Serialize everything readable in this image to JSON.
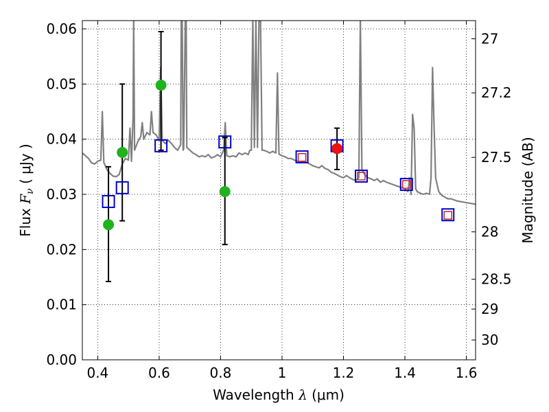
{
  "chart_data": {
    "type": "scatter",
    "xlabel": "Wavelength  λ (μm)",
    "ylabel": "Flux  Fν  ( μJy )",
    "ylabel_parts": {
      "prefix": "Flux  ",
      "symbol": "F",
      "sub": "ν",
      "suffix": "  ( μJy )"
    },
    "xlabel_parts": {
      "prefix": "Wavelength  ",
      "symbol": "λ",
      "suffix": " (μm)"
    },
    "y2label": "Magnitude (AB)",
    "xlim": [
      0.35,
      1.63
    ],
    "ylim": [
      0.0,
      0.0615
    ],
    "grid": true,
    "x_ticks": [
      0.4,
      0.6,
      0.8,
      1.0,
      1.2,
      1.4,
      1.6
    ],
    "x_tick_labels": [
      "0.4",
      "0.6",
      "0.8",
      "1",
      "1.2",
      "1.4",
      "1.6"
    ],
    "y_ticks": [
      0.0,
      0.01,
      0.02,
      0.03,
      0.04,
      0.05,
      0.06
    ],
    "y_tick_labels": [
      "0.00",
      "0.01",
      "0.02",
      "0.03",
      "0.04",
      "0.05",
      "0.06"
    ],
    "y2_ticks": [
      {
        "label": "27",
        "flux": 0.0582
      },
      {
        "label": "27.2",
        "flux": 0.0484
      },
      {
        "label": "27.5",
        "flux": 0.0367
      },
      {
        "label": "28",
        "flux": 0.0232
      },
      {
        "label": "28.5",
        "flux": 0.0146
      },
      {
        "label": "29",
        "flux": 0.0092
      },
      {
        "label": "30",
        "flux": 0.0036
      }
    ],
    "colors": {
      "model": "#808080",
      "observed": "#1fb31f",
      "observed_red": "#ee1111",
      "model_phot_blue": "#0000cc",
      "model_phot_red": "#cc2222",
      "errorbar": "#000000"
    },
    "series": [
      {
        "name": "model spectrum",
        "kind": "line",
        "points": [
          [
            0.35,
            0.0375
          ],
          [
            0.37,
            0.0365
          ],
          [
            0.38,
            0.0357
          ],
          [
            0.39,
            0.0355
          ],
          [
            0.4,
            0.036
          ],
          [
            0.41,
            0.0362
          ],
          [
            0.415,
            0.045
          ],
          [
            0.42,
            0.0358
          ],
          [
            0.43,
            0.0345
          ],
          [
            0.44,
            0.0338
          ],
          [
            0.45,
            0.0333
          ],
          [
            0.46,
            0.0332
          ],
          [
            0.47,
            0.0336
          ],
          [
            0.48,
            0.0355
          ],
          [
            0.49,
            0.0365
          ],
          [
            0.5,
            0.0362
          ],
          [
            0.505,
            0.042
          ],
          [
            0.51,
            0.036
          ],
          [
            0.515,
            0.044
          ],
          [
            0.517,
            0.062
          ],
          [
            0.52,
            0.038
          ],
          [
            0.53,
            0.0395
          ],
          [
            0.54,
            0.0405
          ],
          [
            0.545,
            0.043
          ],
          [
            0.55,
            0.04
          ],
          [
            0.56,
            0.0412
          ],
          [
            0.57,
            0.0408
          ],
          [
            0.575,
            0.045
          ],
          [
            0.58,
            0.0412
          ],
          [
            0.59,
            0.0408
          ],
          [
            0.6,
            0.0398
          ],
          [
            0.605,
            0.053
          ],
          [
            0.61,
            0.0398
          ],
          [
            0.62,
            0.0392
          ],
          [
            0.63,
            0.0398
          ],
          [
            0.64,
            0.0392
          ],
          [
            0.65,
            0.0385
          ],
          [
            0.66,
            0.038
          ],
          [
            0.67,
            0.039
          ],
          [
            0.672,
            0.062
          ],
          [
            0.675,
            0.062
          ],
          [
            0.678,
            0.038
          ],
          [
            0.68,
            0.0383
          ],
          [
            0.685,
            0.062
          ],
          [
            0.688,
            0.062
          ],
          [
            0.69,
            0.0385
          ],
          [
            0.7,
            0.038
          ],
          [
            0.71,
            0.0375
          ],
          [
            0.72,
            0.0372
          ],
          [
            0.73,
            0.0368
          ],
          [
            0.74,
            0.037
          ],
          [
            0.75,
            0.0368
          ],
          [
            0.76,
            0.0372
          ],
          [
            0.77,
            0.0366
          ],
          [
            0.78,
            0.0368
          ],
          [
            0.79,
            0.0372
          ],
          [
            0.8,
            0.0368
          ],
          [
            0.81,
            0.038
          ],
          [
            0.815,
            0.043
          ],
          [
            0.82,
            0.037
          ],
          [
            0.83,
            0.0368
          ],
          [
            0.84,
            0.037
          ],
          [
            0.85,
            0.0368
          ],
          [
            0.86,
            0.0375
          ],
          [
            0.87,
            0.0372
          ],
          [
            0.88,
            0.0375
          ],
          [
            0.89,
            0.0372
          ],
          [
            0.895,
            0.038
          ],
          [
            0.9,
            0.038
          ],
          [
            0.905,
            0.062
          ],
          [
            0.91,
            0.0385
          ],
          [
            0.915,
            0.062
          ],
          [
            0.92,
            0.0385
          ],
          [
            0.925,
            0.062
          ],
          [
            0.93,
            0.062
          ],
          [
            0.935,
            0.038
          ],
          [
            0.94,
            0.038
          ],
          [
            0.95,
            0.0378
          ],
          [
            0.96,
            0.0375
          ],
          [
            0.97,
            0.0378
          ],
          [
            0.98,
            0.0375
          ],
          [
            0.985,
            0.052
          ],
          [
            0.99,
            0.0373
          ],
          [
            1.0,
            0.037
          ],
          [
            1.01,
            0.0368
          ],
          [
            1.02,
            0.0365
          ],
          [
            1.03,
            0.0365
          ],
          [
            1.04,
            0.0362
          ],
          [
            1.05,
            0.036
          ],
          [
            1.06,
            0.0358
          ],
          [
            1.07,
            0.036
          ],
          [
            1.08,
            0.0358
          ],
          [
            1.09,
            0.0355
          ],
          [
            1.1,
            0.0352
          ],
          [
            1.11,
            0.035
          ],
          [
            1.12,
            0.0348
          ],
          [
            1.13,
            0.0352
          ],
          [
            1.14,
            0.0347
          ],
          [
            1.15,
            0.0345
          ],
          [
            1.16,
            0.034
          ],
          [
            1.17,
            0.0338
          ],
          [
            1.18,
            0.0335
          ],
          [
            1.19,
            0.0332
          ],
          [
            1.2,
            0.033
          ],
          [
            1.21,
            0.0334
          ],
          [
            1.22,
            0.033
          ],
          [
            1.23,
            0.0327
          ],
          [
            1.24,
            0.0325
          ],
          [
            1.25,
            0.033
          ],
          [
            1.255,
            0.062
          ],
          [
            1.26,
            0.0345
          ],
          [
            1.27,
            0.0335
          ],
          [
            1.28,
            0.033
          ],
          [
            1.29,
            0.0328
          ],
          [
            1.3,
            0.0325
          ],
          [
            1.31,
            0.0328
          ],
          [
            1.32,
            0.0322
          ],
          [
            1.33,
            0.0325
          ],
          [
            1.34,
            0.0322
          ],
          [
            1.35,
            0.032
          ],
          [
            1.36,
            0.0318
          ],
          [
            1.37,
            0.0316
          ],
          [
            1.38,
            0.0314
          ],
          [
            1.39,
            0.0312
          ],
          [
            1.4,
            0.031
          ],
          [
            1.41,
            0.0305
          ],
          [
            1.415,
            0.033
          ],
          [
            1.42,
            0.03
          ],
          [
            1.425,
            0.0445
          ],
          [
            1.43,
            0.042
          ],
          [
            1.435,
            0.031
          ],
          [
            1.44,
            0.0305
          ],
          [
            1.45,
            0.0302
          ],
          [
            1.46,
            0.03
          ],
          [
            1.47,
            0.0302
          ],
          [
            1.48,
            0.03
          ],
          [
            1.485,
            0.033
          ],
          [
            1.49,
            0.053
          ],
          [
            1.495,
            0.042
          ],
          [
            1.5,
            0.033
          ],
          [
            1.51,
            0.0305
          ],
          [
            1.52,
            0.0298
          ],
          [
            1.53,
            0.0295
          ],
          [
            1.54,
            0.0292
          ],
          [
            1.55,
            0.0292
          ],
          [
            1.56,
            0.029
          ],
          [
            1.57,
            0.0288
          ],
          [
            1.58,
            0.0287
          ],
          [
            1.59,
            0.0286
          ],
          [
            1.6,
            0.0285
          ],
          [
            1.61,
            0.0284
          ],
          [
            1.62,
            0.0283
          ],
          [
            1.63,
            0.0282
          ]
        ]
      },
      {
        "name": "observed photometry",
        "kind": "points-errorbar",
        "points": [
          {
            "x": 0.435,
            "y": 0.0245,
            "yerr_low": 0.0103,
            "yerr_high": 0.0105
          },
          {
            "x": 0.48,
            "y": 0.0376,
            "yerr_low": 0.0124,
            "yerr_high": 0.0124
          },
          {
            "x": 0.606,
            "y": 0.0498,
            "yerr_low": 0.0118,
            "yerr_high": 0.0097
          },
          {
            "x": 0.814,
            "y": 0.0305,
            "yerr_low": 0.0096,
            "yerr_high": 0.0098
          },
          {
            "x": 1.179,
            "y": 0.0383,
            "yerr_low": 0.0038,
            "yerr_high": 0.0037,
            "color": "red"
          }
        ]
      },
      {
        "name": "model photometry (blue squares)",
        "kind": "open-square",
        "points": [
          [
            0.435,
            0.0287
          ],
          [
            0.48,
            0.0312
          ],
          [
            0.606,
            0.0388
          ],
          [
            0.814,
            0.0395
          ],
          [
            1.065,
            0.0368
          ],
          [
            1.179,
            0.0388
          ],
          [
            1.258,
            0.0333
          ],
          [
            1.405,
            0.0318
          ],
          [
            1.54,
            0.0263
          ]
        ]
      },
      {
        "name": "model photometry (red squares)",
        "kind": "open-square-small",
        "points": [
          [
            1.065,
            0.0367
          ],
          [
            1.258,
            0.0333
          ],
          [
            1.405,
            0.0318
          ],
          [
            1.54,
            0.0262
          ]
        ]
      }
    ]
  }
}
